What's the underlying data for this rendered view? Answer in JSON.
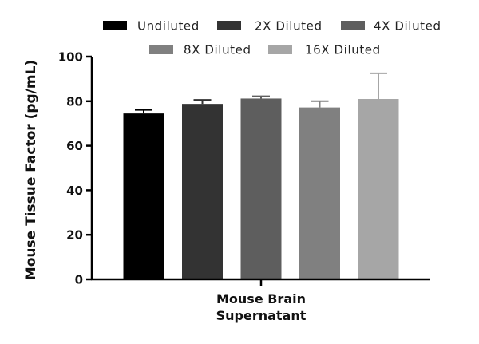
{
  "chart_data": {
    "type": "bar",
    "categories": [
      "Mouse Brain Supernatant"
    ],
    "category_lines": [
      "Mouse Brain",
      "Supernatant"
    ],
    "series": [
      {
        "name": "Undiluted",
        "values": [
          74.5
        ],
        "error": [
          1.6
        ],
        "color": "#000000"
      },
      {
        "name": "2X Diluted",
        "values": [
          78.8
        ],
        "error": [
          1.8
        ],
        "color": "#333333"
      },
      {
        "name": "4X Diluted",
        "values": [
          81.2
        ],
        "error": [
          1.0
        ],
        "color": "#5e5e5e"
      },
      {
        "name": "8X Diluted",
        "values": [
          77.2
        ],
        "error": [
          2.8
        ],
        "color": "#808080"
      },
      {
        "name": "16X Diluted",
        "values": [
          81.0
        ],
        "error": [
          11.5
        ],
        "color": "#a6a6a6"
      }
    ],
    "xlabel": "",
    "ylabel": "Mouse Tissue Factor (pg/mL)",
    "ylim": [
      0,
      100
    ],
    "yticks": [
      0,
      20,
      40,
      60,
      80,
      100
    ],
    "ytick_labels": [
      "0",
      "20",
      "40",
      "60",
      "80",
      "100"
    ],
    "grid": false,
    "legend_position": "top"
  }
}
